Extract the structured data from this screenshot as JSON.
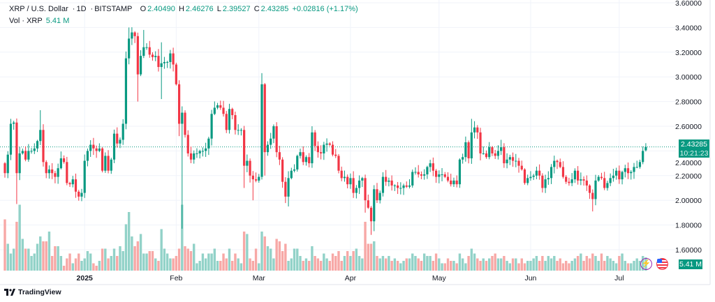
{
  "legend": {
    "symbol": "XRP / U.S. Dollar",
    "interval": "1D",
    "exchange": "BITSTAMP",
    "open_label": "O",
    "open": "2.40490",
    "high_label": "H",
    "high": "2.46276",
    "low_label": "L",
    "low": "2.39527",
    "close_label": "C",
    "close": "2.43285",
    "change": "+0.02816 (+1.17%)",
    "volume_label": "Vol · XRP",
    "volume": "5.41 M"
  },
  "price_tag": {
    "price": "2.43285",
    "countdown": "10:21:23"
  },
  "volume_tag": "5.41 M",
  "branding": "TradingView",
  "icons": [
    "lightning-badge-icon",
    "us-flag-icon"
  ],
  "colors": {
    "up": "#089981",
    "down": "#f23645",
    "vol_up": "#92d2c8",
    "vol_down": "#f7a8a6",
    "grid": "#f0f3fa"
  },
  "chart_data": {
    "type": "candlestick",
    "title": "XRP / U.S. Dollar · 1D · BITSTAMP",
    "ylim": [
      1.6,
      3.6
    ],
    "y_ticks": [
      "3.60000",
      "3.40000",
      "3.20000",
      "3.00000",
      "2.80000",
      "2.60000",
      "2.40000",
      "2.20000",
      "2.00000",
      "1.80000",
      "1.60000"
    ],
    "x_ticks": [
      {
        "label": "2025",
        "index": 27,
        "bold": true
      },
      {
        "label": "Feb",
        "index": 58
      },
      {
        "label": "Mar",
        "index": 86
      },
      {
        "label": "Apr",
        "index": 117
      },
      {
        "label": "May",
        "index": 147
      },
      {
        "label": "Jun",
        "index": 178
      },
      {
        "label": "Jul",
        "index": 208
      }
    ],
    "first_open": 2.3,
    "close": [
      2.22,
      2.37,
      2.62,
      2.63,
      2.22,
      2.38,
      2.4,
      2.33,
      2.4,
      2.4,
      2.42,
      2.48,
      2.57,
      2.31,
      2.22,
      2.25,
      2.22,
      2.19,
      2.26,
      2.34,
      2.31,
      2.14,
      2.13,
      2.17,
      2.07,
      2.03,
      2.06,
      2.32,
      2.4,
      2.45,
      2.42,
      2.4,
      2.42,
      2.24,
      2.36,
      2.24,
      2.33,
      2.54,
      2.46,
      2.49,
      2.62,
      3.15,
      3.31,
      3.36,
      3.33,
      3.02,
      3.17,
      3.24,
      3.24,
      3.18,
      3.16,
      3.17,
      3.08,
      3.11,
      3.12,
      3.12,
      3.19,
      3.1,
      2.94,
      2.62,
      2.71,
      2.53,
      2.38,
      2.33,
      2.38,
      2.38,
      2.4,
      2.4,
      2.42,
      2.5,
      2.7,
      2.75,
      2.77,
      2.75,
      2.7,
      2.57,
      2.74,
      2.69,
      2.57,
      2.57,
      2.57,
      2.28,
      2.32,
      2.2,
      2.17,
      2.16,
      2.19,
      2.94,
      2.39,
      2.45,
      2.5,
      2.6,
      2.39,
      2.33,
      2.15,
      2.03,
      2.18,
      2.24,
      2.25,
      2.36,
      2.39,
      2.31,
      2.35,
      2.3,
      2.55,
      2.44,
      2.39,
      2.38,
      2.45,
      2.46,
      2.45,
      2.37,
      2.36,
      2.24,
      2.18,
      2.19,
      2.13,
      2.18,
      2.06,
      2.1,
      2.16,
      2.18,
      2.0,
      1.94,
      1.83,
      2.09,
      2.0,
      2.06,
      2.19,
      2.15,
      2.16,
      2.12,
      2.12,
      2.1,
      2.1,
      2.12,
      2.11,
      2.12,
      2.23,
      2.23,
      2.21,
      2.2,
      2.21,
      2.27,
      2.3,
      2.24,
      2.19,
      2.21,
      2.21,
      2.19,
      2.16,
      2.13,
      2.16,
      2.13,
      2.33,
      2.35,
      2.47,
      2.34,
      2.55,
      2.59,
      2.55,
      2.38,
      2.38,
      2.35,
      2.43,
      2.38,
      2.36,
      2.4,
      2.43,
      2.3,
      2.33,
      2.35,
      2.32,
      2.32,
      2.28,
      2.25,
      2.14,
      2.18,
      2.19,
      2.2,
      2.24,
      2.2,
      2.1,
      2.17,
      2.18,
      2.27,
      2.32,
      2.31,
      2.27,
      2.19,
      2.15,
      2.14,
      2.17,
      2.24,
      2.16,
      2.17,
      2.16,
      2.12,
      2.06,
      2.01,
      2.16,
      2.19,
      2.18,
      2.1,
      2.14,
      2.18,
      2.2,
      2.24,
      2.17,
      2.23,
      2.26,
      2.22,
      2.23,
      2.27,
      2.27,
      2.31,
      2.4,
      2.43285
    ],
    "last_candle": {
      "open": 2.4049,
      "high": 2.46276,
      "low": 2.39527,
      "close": 2.43285
    },
    "wick_overrides": {
      "2": {
        "high": 2.66
      },
      "4": {
        "low": 1.97
      },
      "12": {
        "high": 2.73
      },
      "24": {
        "low": 2.02
      },
      "42": {
        "high": 3.4
      },
      "45": {
        "low": 2.8
      },
      "47": {
        "high": 3.38
      },
      "53": {
        "low": 2.82,
        "high": 3.28
      },
      "59": {
        "low": 2.52
      },
      "60": {
        "low": 1.77
      },
      "81": {
        "low": 2.1
      },
      "84": {
        "low": 2.0
      },
      "87": {
        "high": 3.03
      },
      "88": {
        "low": 2.2
      },
      "96": {
        "low": 1.95
      },
      "104": {
        "high": 2.6
      },
      "122": {
        "low": 1.9
      },
      "124": {
        "low": 1.72
      },
      "125": {
        "low": 1.75
      },
      "158": {
        "high": 2.66
      },
      "168": {
        "high": 2.49
      },
      "199": {
        "low": 1.91
      },
      "200": {
        "low": 1.96
      }
    },
    "volume_m": [
      21,
      11,
      7,
      9,
      20,
      27,
      13,
      9,
      9,
      6,
      7,
      11,
      14,
      12,
      12,
      16,
      6,
      10,
      10,
      6,
      2,
      5,
      7,
      3,
      5,
      7,
      4,
      5,
      8,
      7,
      3,
      2,
      4,
      9,
      9,
      5,
      6,
      9,
      6,
      10,
      8,
      19,
      24,
      14,
      10,
      12,
      15,
      7,
      7,
      8,
      8,
      5,
      4,
      17,
      9,
      7,
      5,
      5,
      6,
      9,
      27,
      10,
      9,
      8,
      11,
      3,
      4,
      7,
      5,
      7,
      7,
      9,
      4,
      4,
      7,
      5,
      9,
      4,
      7,
      5,
      3,
      16,
      15,
      5,
      4,
      9,
      3,
      16,
      14,
      10,
      9,
      5,
      13,
      12,
      8,
      11,
      4,
      5,
      9,
      9,
      6,
      4,
      5,
      4,
      10,
      6,
      5,
      4,
      7,
      5,
      4,
      7,
      6,
      8,
      4,
      6,
      8,
      6,
      8,
      9,
      6,
      5,
      20,
      11,
      11,
      12,
      6,
      5,
      6,
      5,
      6,
      4,
      5,
      4,
      3,
      4,
      5,
      5,
      7,
      6,
      5,
      4,
      7,
      6,
      6,
      4,
      7,
      5,
      3,
      3,
      5,
      4,
      4,
      3,
      7,
      5,
      3,
      6,
      9,
      7,
      5,
      4,
      5,
      4,
      5,
      6,
      7,
      5,
      5,
      6,
      4,
      3,
      5,
      5,
      3,
      5,
      3,
      4,
      4,
      5,
      6,
      4,
      6,
      4,
      6,
      5,
      6,
      4,
      5,
      3,
      4,
      3,
      4,
      5,
      6,
      7,
      4,
      6,
      5,
      7,
      6,
      4,
      7,
      4,
      6,
      5,
      4,
      3,
      6,
      7,
      4,
      3,
      3,
      4,
      5,
      4,
      6,
      5.41
    ]
  }
}
